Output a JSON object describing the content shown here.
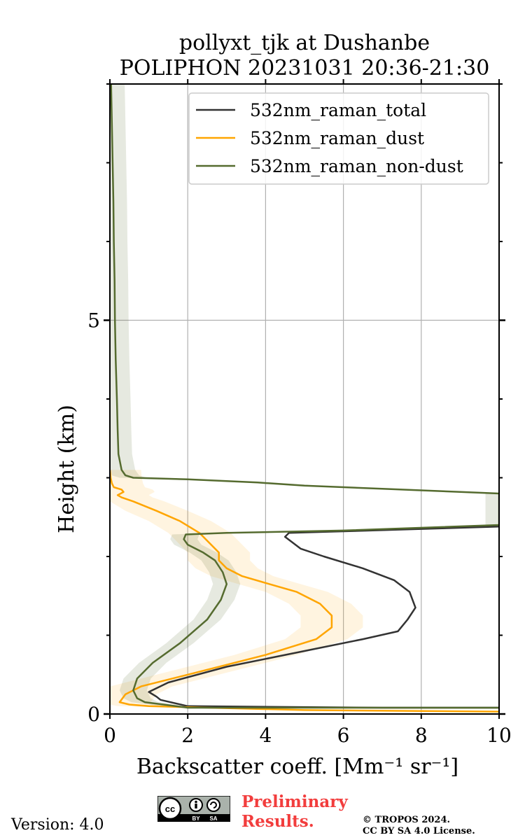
{
  "title_line1": "pollyxt_tjk at Dushanbe",
  "title_line2": "POLIPHON 20231031 20:36-21:30",
  "footer": {
    "version": "Version: 4.0",
    "preliminary_line1": "Preliminary",
    "preliminary_line2": "Results.",
    "copyright_line1": "© TROPOS 2024.",
    "copyright_line2": "CC BY SA 4.0 License.",
    "license_badge": [
      "cc",
      "BY",
      "SA"
    ]
  },
  "chart_data": {
    "type": "line",
    "title": "pollyxt_tjk at Dushanbe POLIPHON 20231031 20:36-21:30",
    "xlabel": "Backscatter coeff. [Mm⁻¹ sr⁻¹]",
    "ylabel": "Height (km)",
    "xlim": [
      0,
      10
    ],
    "ylim": [
      0,
      8
    ],
    "x_ticks": [
      0,
      2,
      4,
      6,
      8,
      10
    ],
    "y_ticks": [
      0,
      5
    ],
    "y_minor_ticks": [
      1,
      2,
      3,
      4,
      6,
      7,
      8
    ],
    "grid": true,
    "legend_position": "top-right",
    "colors": {
      "total": "#333333",
      "dust": "#ffa500",
      "non_dust": "#556b2f"
    },
    "series": [
      {
        "name": "532nm_raman_total",
        "color": "#333333",
        "points": [
          [
            10,
            0.08
          ],
          [
            7,
            0.08
          ],
          [
            2,
            0.1
          ],
          [
            1.3,
            0.18
          ],
          [
            1.2,
            0.22
          ],
          [
            1,
            0.28
          ],
          [
            1.5,
            0.4
          ],
          [
            3,
            0.6
          ],
          [
            5,
            0.8
          ],
          [
            6.5,
            0.95
          ],
          [
            7.4,
            1.05
          ],
          [
            7.65,
            1.2
          ],
          [
            7.85,
            1.35
          ],
          [
            7.7,
            1.55
          ],
          [
            7.3,
            1.7
          ],
          [
            6.5,
            1.85
          ],
          [
            5.5,
            2
          ],
          [
            4.9,
            2.1
          ],
          [
            4.5,
            2.25
          ],
          [
            4.6,
            2.3
          ],
          [
            6,
            2.32
          ],
          [
            8,
            2.35
          ],
          [
            10,
            2.38
          ]
        ]
      },
      {
        "name": "532nm_raman_dust",
        "color": "#ffa500",
        "band_halfwidth": 0.8,
        "points": [
          [
            10,
            0.03
          ],
          [
            5,
            0.05
          ],
          [
            1,
            0.1
          ],
          [
            0.5,
            0.12
          ],
          [
            0.25,
            0.15
          ],
          [
            0.4,
            0.25
          ],
          [
            0.8,
            0.35
          ],
          [
            2,
            0.5
          ],
          [
            4,
            0.75
          ],
          [
            5.3,
            0.95
          ],
          [
            5.7,
            1.1
          ],
          [
            5.7,
            1.25
          ],
          [
            5.4,
            1.4
          ],
          [
            4.8,
            1.55
          ],
          [
            4.1,
            1.65
          ],
          [
            3.4,
            1.75
          ],
          [
            3,
            1.85
          ],
          [
            2.8,
            1.95
          ],
          [
            2.8,
            2.05
          ],
          [
            2.6,
            2.15
          ],
          [
            2.3,
            2.3
          ],
          [
            1.8,
            2.45
          ],
          [
            1.2,
            2.58
          ],
          [
            0.6,
            2.7
          ],
          [
            0.3,
            2.75
          ],
          [
            0.2,
            2.78
          ],
          [
            0.35,
            2.82
          ],
          [
            0.3,
            2.85
          ],
          [
            0.1,
            2.88
          ],
          [
            0.05,
            2.93
          ],
          [
            0.02,
            3
          ],
          [
            0,
            3.1
          ]
        ]
      },
      {
        "name": "532nm_raman_non-dust",
        "color": "#556b2f",
        "band_halfwidth": 0.35,
        "points": [
          [
            10,
            0.08
          ],
          [
            7,
            0.08
          ],
          [
            2,
            0.08
          ],
          [
            0.9,
            0.15
          ],
          [
            0.7,
            0.2
          ],
          [
            0.6,
            0.3
          ],
          [
            0.7,
            0.45
          ],
          [
            1.1,
            0.65
          ],
          [
            1.8,
            0.9
          ],
          [
            2.5,
            1.2
          ],
          [
            2.85,
            1.45
          ],
          [
            3,
            1.65
          ],
          [
            2.9,
            1.8
          ],
          [
            2.7,
            1.95
          ],
          [
            2.4,
            2.05
          ],
          [
            2,
            2.15
          ],
          [
            1.9,
            2.22
          ],
          [
            1.95,
            2.28
          ],
          [
            3,
            2.3
          ],
          [
            6,
            2.33
          ],
          [
            10,
            2.4
          ],
          [
            10,
            2.8
          ],
          [
            9,
            2.82
          ],
          [
            7,
            2.86
          ],
          [
            5,
            2.9
          ],
          [
            3.8,
            2.94
          ],
          [
            2,
            2.98
          ],
          [
            0.6,
            3
          ],
          [
            0.4,
            3.03
          ],
          [
            0.3,
            3.1
          ],
          [
            0.22,
            3.3
          ],
          [
            0.2,
            3.6
          ],
          [
            0.18,
            4
          ],
          [
            0.15,
            4.5
          ],
          [
            0.13,
            5
          ],
          [
            0.12,
            5.5
          ],
          [
            0.1,
            6
          ],
          [
            0.09,
            6.5
          ],
          [
            0.07,
            7
          ],
          [
            0.05,
            7.5
          ],
          [
            0.03,
            8
          ]
        ]
      }
    ]
  }
}
